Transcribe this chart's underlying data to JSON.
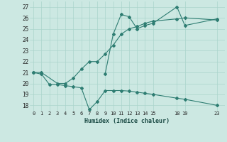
{
  "line1_x": [
    0,
    1,
    2,
    3,
    4,
    5,
    6,
    7,
    8,
    9,
    10,
    11,
    12,
    13,
    14,
    15,
    18,
    19,
    23
  ],
  "line1_y": [
    21.0,
    20.85,
    19.9,
    19.9,
    19.8,
    19.7,
    19.6,
    17.6,
    18.35,
    19.35,
    19.35,
    19.35,
    19.3,
    19.2,
    19.1,
    19.0,
    18.65,
    18.55,
    18.0
  ],
  "line2_x": [
    0,
    1,
    3,
    4,
    5,
    6,
    7,
    8,
    9,
    10,
    11,
    12,
    13,
    14,
    15,
    18,
    19,
    23
  ],
  "line2_y": [
    21.0,
    21.0,
    20.0,
    20.0,
    20.5,
    21.3,
    22.0,
    22.0,
    22.7,
    23.5,
    24.5,
    25.0,
    25.2,
    25.5,
    25.7,
    25.9,
    26.0,
    25.8
  ],
  "line3_x": [
    9,
    10,
    11,
    12,
    13,
    14,
    15,
    18,
    19,
    23
  ],
  "line3_y": [
    20.9,
    24.5,
    26.3,
    26.1,
    25.0,
    25.3,
    25.5,
    27.0,
    25.3,
    25.9
  ],
  "color": "#2e7d72",
  "bg_color": "#cce8e2",
  "grid_color": "#aad4cc",
  "xlabel": "Humidex (Indice chaleur)",
  "yticks": [
    18,
    19,
    20,
    21,
    22,
    23,
    24,
    25,
    26,
    27
  ],
  "xticks": [
    0,
    1,
    2,
    3,
    4,
    5,
    6,
    7,
    8,
    9,
    10,
    11,
    12,
    13,
    14,
    15,
    18,
    19,
    23
  ],
  "ylim": [
    17.5,
    27.5
  ],
  "xlim": [
    -0.5,
    24.0
  ]
}
